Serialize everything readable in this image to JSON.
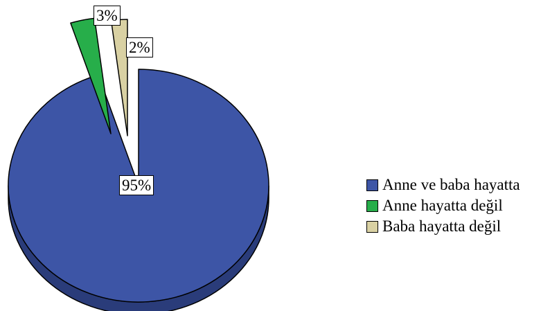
{
  "chart_data": {
    "type": "pie",
    "categories": [
      "Anne ve baba hayatta",
      "Anne hayatta değil",
      "Baba hayatta değil"
    ],
    "values": [
      95,
      3,
      2
    ],
    "data_labels": [
      "95%",
      "3%",
      "2%"
    ],
    "colors": [
      "#3d55a6",
      "#27ae4a",
      "#d9d1a3"
    ],
    "side_color": "#2a3c7a",
    "exploded": [
      "Anne hayatta değil",
      "Baba hayatta değil"
    ],
    "legend_position": "right",
    "title": ""
  }
}
